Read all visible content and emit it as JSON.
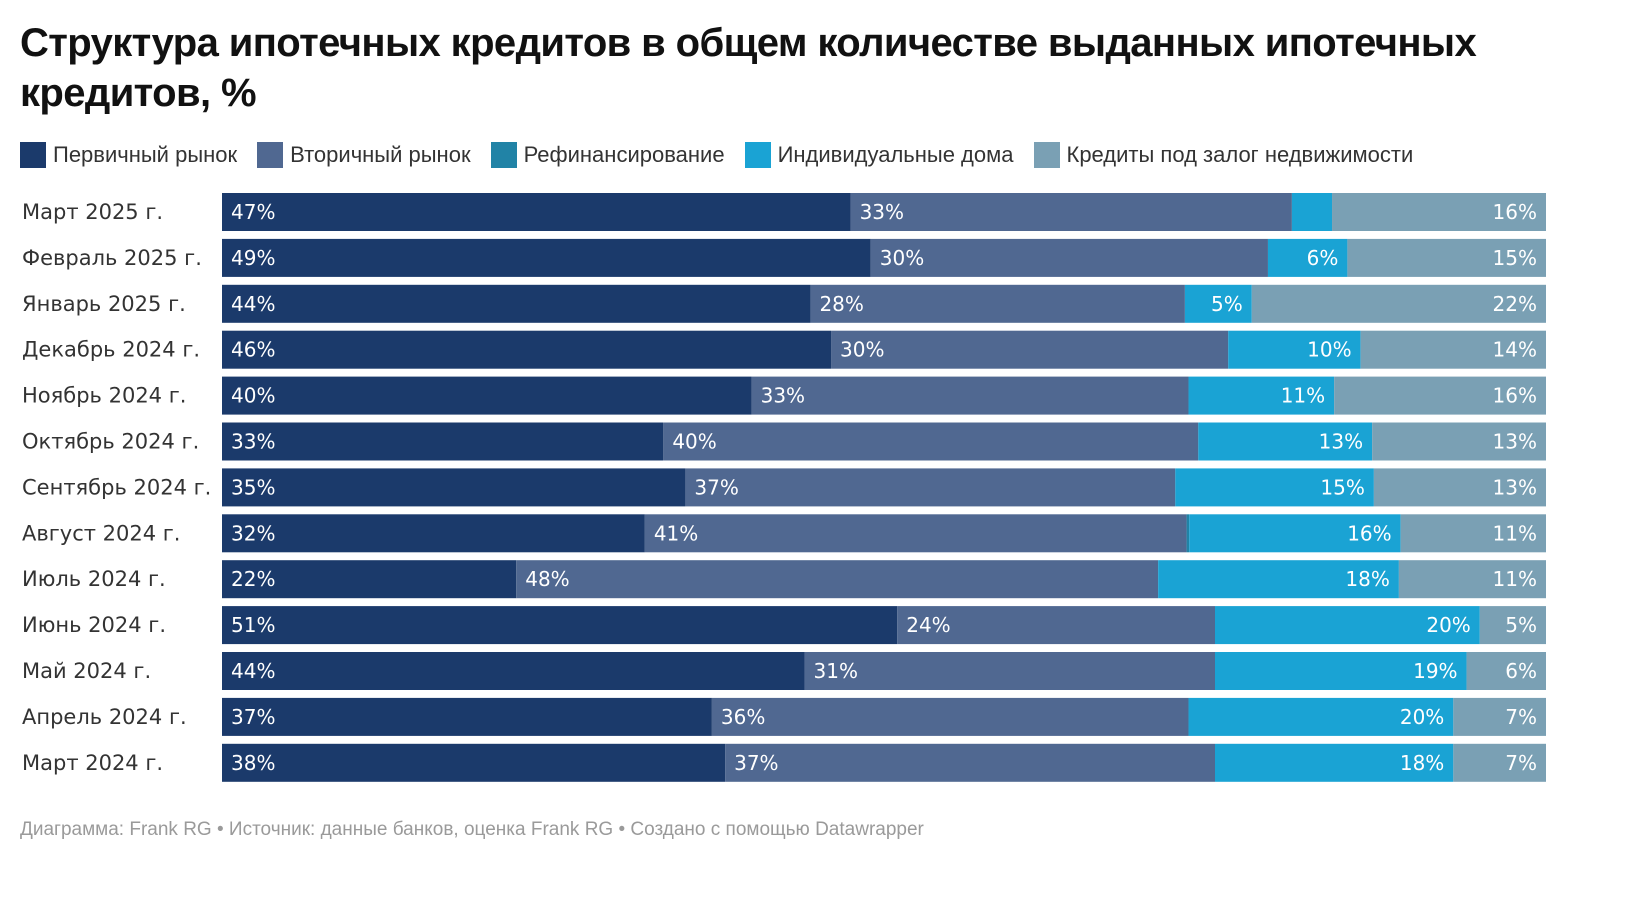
{
  "title": "Структура ипотечных кредитов в общем количестве выданных ипотечных кредитов, %",
  "footer": "Диаграмма: Frank RG • Источник: данные банков, оценка Frank RG • Создано с помощью Datawrapper",
  "chart_data": {
    "type": "bar",
    "orientation": "horizontal-stacked",
    "xlim": [
      0,
      100
    ],
    "grid": false,
    "legend_placement": "top-left",
    "categories": [
      "Март 2025 г.",
      "Февраль 2025 г.",
      "Январь 2025 г.",
      "Декабрь 2024 г.",
      "Ноябрь 2024 г.",
      "Октябрь 2024 г.",
      "Сентябрь 2024 г.",
      "Август 2024 г.",
      "Июль 2024 г.",
      "Июнь 2024 г.",
      "Май 2024 г.",
      "Апрель 2024 г.",
      "Март 2024 г."
    ],
    "series": [
      {
        "name": "Первичный рынок",
        "color": "#1b3a6b",
        "values": [
          47,
          49,
          44,
          46,
          40,
          33,
          35,
          32,
          22,
          51,
          44,
          37,
          38
        ],
        "labels": [
          "47%",
          "49%",
          "44%",
          "46%",
          "40%",
          "33%",
          "35%",
          "32%",
          "22%",
          "51%",
          "44%",
          "37%",
          "38%"
        ]
      },
      {
        "name": "Вторичный рынок",
        "color": "#506891",
        "values": [
          33,
          30,
          28,
          30,
          33,
          40,
          37,
          41,
          48,
          24,
          31,
          36,
          37
        ],
        "labels": [
          "33%",
          "30%",
          "28%",
          "30%",
          "33%",
          "40%",
          "37%",
          "41%",
          "48%",
          "24%",
          "31%",
          "36%",
          "37%"
        ]
      },
      {
        "name": "Рефинансирование",
        "color": "#2183a6",
        "values": [
          0,
          0,
          0,
          0,
          0,
          0,
          0,
          0.2,
          0,
          0,
          0,
          0,
          0
        ],
        "labels": [
          "",
          "",
          "",
          "",
          "",
          "",
          "",
          "",
          "",
          "",
          "",
          "",
          ""
        ]
      },
      {
        "name": "Индивидуальные дома",
        "color": "#1aa3d4",
        "values": [
          3,
          6,
          5,
          10,
          11,
          13,
          15,
          16,
          18,
          20,
          19,
          20,
          18
        ],
        "labels": [
          "",
          "6%",
          "5%",
          "10%",
          "11%",
          "13%",
          "15%",
          "16%",
          "18%",
          "20%",
          "19%",
          "20%",
          "18%"
        ]
      },
      {
        "name": "Кредиты под залог недвижимости",
        "color": "#7aa0b4",
        "values": [
          16,
          15,
          22,
          14,
          16,
          13,
          13,
          11,
          11,
          5,
          6,
          7,
          7
        ],
        "labels": [
          "16%",
          "15%",
          "22%",
          "14%",
          "16%",
          "13%",
          "13%",
          "11%",
          "11%",
          "5%",
          "6%",
          "7%",
          "7%"
        ]
      }
    ]
  }
}
